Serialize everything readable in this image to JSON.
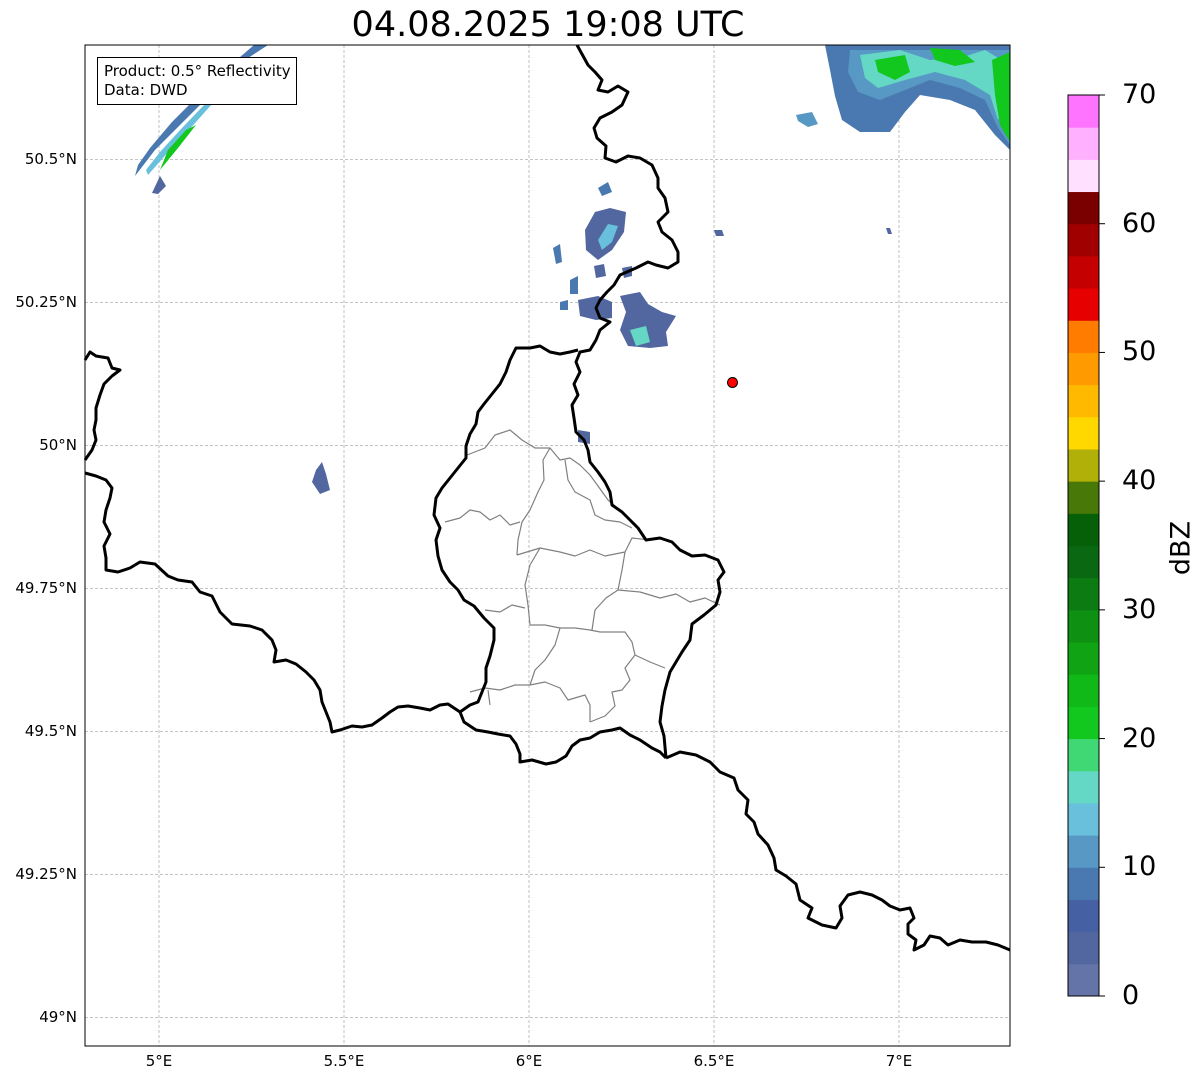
{
  "title": "04.08.2025 19:08 UTC",
  "info_box": {
    "product": "Product: 0.5° Reflectivity",
    "data_source": "Data: DWD"
  },
  "map": {
    "extent": {
      "lon_min": 4.8,
      "lon_max": 7.3,
      "lat_min": 48.95,
      "lat_max": 50.7
    },
    "latitude_ticks": [
      {
        "value": 50.5,
        "label": "50.5°N"
      },
      {
        "value": 50.25,
        "label": "50.25°N"
      },
      {
        "value": 50.0,
        "label": "50°N"
      },
      {
        "value": 49.75,
        "label": "49.75°N"
      },
      {
        "value": 49.5,
        "label": "49.5°N"
      },
      {
        "value": 49.25,
        "label": "49.25°N"
      },
      {
        "value": 49.0,
        "label": "49°N"
      }
    ],
    "longitude_ticks": [
      {
        "value": 5.0,
        "label": "5°E"
      },
      {
        "value": 5.5,
        "label": "5.5°E"
      },
      {
        "value": 6.0,
        "label": "6°E"
      },
      {
        "value": 6.5,
        "label": "6.5°E"
      },
      {
        "value": 7.0,
        "label": "7°E"
      }
    ],
    "gridlines": true,
    "radar_site": {
      "lon": 6.55,
      "lat": 50.11,
      "color": "#ff0000"
    },
    "border_color": "#000000",
    "district_border_color": "#808080"
  },
  "colorbar": {
    "label": "dBZ",
    "min": 0,
    "max": 70,
    "step": 2.5,
    "ticks": [
      "0",
      "10",
      "20",
      "30",
      "40",
      "50",
      "60",
      "70"
    ],
    "colors": [
      "#6474a8",
      "#5266a0",
      "#4660a4",
      "#4a78b0",
      "#5898c4",
      "#68c0dc",
      "#64d8c4",
      "#40d874",
      "#12c81e",
      "#10b818",
      "#10a414",
      "#0e9012",
      "#0c7c12",
      "#0a6812",
      "#066008",
      "#487808",
      "#b0b008",
      "#ffd800",
      "#ffba00",
      "#ff9a00",
      "#ff7c00",
      "#e60000",
      "#c40000",
      "#a00000",
      "#7a0000",
      "#ffe0ff",
      "#ffb0ff",
      "#ff74ff",
      "#e838ec"
    ]
  }
}
